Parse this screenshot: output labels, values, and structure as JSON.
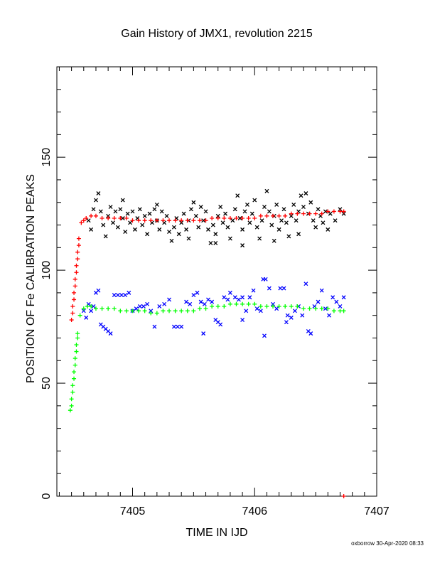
{
  "chart_data": {
    "type": "scatter",
    "title": "Gain History of JMX1, revolution 2215",
    "xlabel": "TIME IN IJD",
    "ylabel": "POSITION OF Fe CALIBRATION PEAKS",
    "xlim": [
      7404.38,
      7407.0
    ],
    "ylim": [
      0,
      190
    ],
    "xticks": [
      7405,
      7406,
      7407
    ],
    "xtick_labels": [
      "7405",
      "7406",
      "7407"
    ],
    "yticks": [
      0,
      50,
      100,
      150
    ],
    "ytick_labels": [
      "0",
      "50",
      "100",
      "150"
    ],
    "footer": "oxborrow 30-Apr-2020 08:33",
    "series": [
      {
        "color": "#000000",
        "marker": "x",
        "points": [
          [
            7404.64,
            122
          ],
          [
            7404.66,
            118
          ],
          [
            7404.68,
            127
          ],
          [
            7404.7,
            131
          ],
          [
            7404.72,
            134
          ],
          [
            7404.74,
            126
          ],
          [
            7404.76,
            120
          ],
          [
            7404.78,
            115
          ],
          [
            7404.8,
            124
          ],
          [
            7404.82,
            128
          ],
          [
            7404.84,
            121
          ],
          [
            7404.86,
            126
          ],
          [
            7404.88,
            119
          ],
          [
            7404.9,
            127
          ],
          [
            7404.92,
            123
          ],
          [
            7404.94,
            117
          ],
          [
            7404.96,
            125
          ],
          [
            7404.98,
            121
          ],
          [
            7405.0,
            126
          ],
          [
            7405.02,
            118
          ],
          [
            7405.04,
            123
          ],
          [
            7405.06,
            127
          ],
          [
            7405.08,
            120
          ],
          [
            7405.1,
            124
          ],
          [
            7405.12,
            116
          ],
          [
            7405.14,
            125
          ],
          [
            7405.16,
            121
          ],
          [
            7405.18,
            127
          ],
          [
            7405.2,
            122
          ],
          [
            7405.22,
            118
          ],
          [
            7405.24,
            126
          ],
          [
            7405.26,
            121
          ],
          [
            7405.28,
            124
          ],
          [
            7405.3,
            117
          ],
          [
            7405.32,
            113
          ],
          [
            7405.34,
            119
          ],
          [
            7405.36,
            123
          ],
          [
            7405.38,
            116
          ],
          [
            7405.4,
            121
          ],
          [
            7405.42,
            125
          ],
          [
            7405.44,
            118
          ],
          [
            7405.46,
            122
          ],
          [
            7405.48,
            127
          ],
          [
            7405.5,
            130
          ],
          [
            7405.52,
            124
          ],
          [
            7405.54,
            119
          ],
          [
            7405.56,
            128
          ],
          [
            7405.58,
            122
          ],
          [
            7405.6,
            126
          ],
          [
            7405.62,
            118
          ],
          [
            7405.64,
            112
          ],
          [
            7405.66,
            120
          ],
          [
            7405.68,
            116
          ],
          [
            7405.7,
            124
          ],
          [
            7405.72,
            128
          ],
          [
            7405.74,
            121
          ],
          [
            7405.76,
            125
          ],
          [
            7405.78,
            119
          ],
          [
            7405.8,
            114
          ],
          [
            7405.82,
            122
          ],
          [
            7405.84,
            127
          ],
          [
            7405.86,
            133
          ],
          [
            7405.88,
            123
          ],
          [
            7405.9,
            118
          ],
          [
            7405.92,
            126
          ],
          [
            7405.94,
            129
          ],
          [
            7405.96,
            121
          ],
          [
            7405.98,
            125
          ],
          [
            7406.0,
            131
          ],
          [
            7406.02,
            119
          ],
          [
            7406.04,
            114
          ],
          [
            7406.06,
            122
          ],
          [
            7406.08,
            128
          ],
          [
            7406.1,
            135
          ],
          [
            7406.12,
            126
          ],
          [
            7406.14,
            120
          ],
          [
            7406.16,
            124
          ],
          [
            7406.18,
            129
          ],
          [
            7406.2,
            118
          ],
          [
            7406.22,
            122
          ],
          [
            7406.24,
            127
          ],
          [
            7406.26,
            121
          ],
          [
            7406.28,
            115
          ],
          [
            7406.3,
            124
          ],
          [
            7406.32,
            129
          ],
          [
            7406.34,
            122
          ],
          [
            7406.36,
            126
          ],
          [
            7406.38,
            133
          ],
          [
            7406.4,
            128
          ],
          [
            7406.42,
            134
          ],
          [
            7406.44,
            125
          ],
          [
            7406.46,
            130
          ],
          [
            7406.48,
            122
          ],
          [
            7406.5,
            119
          ],
          [
            7406.52,
            127
          ],
          [
            7406.54,
            124
          ],
          [
            7406.56,
            121
          ],
          [
            7406.58,
            126
          ],
          [
            7406.6,
            118
          ],
          [
            7406.62,
            125
          ],
          [
            7406.66,
            122
          ],
          [
            7406.7,
            127
          ],
          [
            7406.73,
            125
          ],
          [
            7405.68,
            112
          ],
          [
            7406.36,
            116
          ],
          [
            7405.2,
            129
          ],
          [
            7405.46,
            114
          ],
          [
            7405.9,
            111
          ],
          [
            7406.16,
            113
          ],
          [
            7404.92,
            131
          ]
        ]
      },
      {
        "color": "#ff0000",
        "marker": "+",
        "points": [
          [
            7404.5,
            78
          ],
          [
            7404.51,
            81
          ],
          [
            7404.51,
            84
          ],
          [
            7404.52,
            87
          ],
          [
            7404.52,
            90
          ],
          [
            7404.53,
            93
          ],
          [
            7404.53,
            96
          ],
          [
            7404.54,
            99
          ],
          [
            7404.54,
            102
          ],
          [
            7404.55,
            105
          ],
          [
            7404.55,
            108
          ],
          [
            7404.56,
            111
          ],
          [
            7404.56,
            114
          ],
          [
            7404.58,
            121
          ],
          [
            7404.6,
            122
          ],
          [
            7404.62,
            123
          ],
          [
            7404.66,
            124
          ],
          [
            7404.7,
            124
          ],
          [
            7404.75,
            123
          ],
          [
            7404.8,
            123
          ],
          [
            7404.85,
            123
          ],
          [
            7404.9,
            123
          ],
          [
            7404.95,
            123
          ],
          [
            7405.0,
            122
          ],
          [
            7405.05,
            122
          ],
          [
            7405.1,
            122
          ],
          [
            7405.15,
            122
          ],
          [
            7405.2,
            122
          ],
          [
            7405.25,
            122
          ],
          [
            7405.3,
            122
          ],
          [
            7405.35,
            122
          ],
          [
            7405.4,
            122
          ],
          [
            7405.45,
            122
          ],
          [
            7405.5,
            122
          ],
          [
            7405.55,
            122
          ],
          [
            7405.6,
            122
          ],
          [
            7405.65,
            123
          ],
          [
            7405.7,
            123
          ],
          [
            7405.75,
            123
          ],
          [
            7405.8,
            123
          ],
          [
            7405.85,
            123
          ],
          [
            7405.9,
            123
          ],
          [
            7405.95,
            123
          ],
          [
            7406.0,
            123
          ],
          [
            7406.05,
            124
          ],
          [
            7406.1,
            124
          ],
          [
            7406.15,
            124
          ],
          [
            7406.2,
            124
          ],
          [
            7406.25,
            124
          ],
          [
            7406.3,
            125
          ],
          [
            7406.35,
            125
          ],
          [
            7406.4,
            125
          ],
          [
            7406.45,
            125
          ],
          [
            7406.5,
            125
          ],
          [
            7406.55,
            125
          ],
          [
            7406.6,
            126
          ],
          [
            7406.65,
            126
          ],
          [
            7406.7,
            126
          ],
          [
            7406.73,
            126
          ],
          [
            7406.73,
            0
          ]
        ]
      },
      {
        "color": "#0000ff",
        "marker": "x",
        "points": [
          [
            7404.6,
            82
          ],
          [
            7404.62,
            79
          ],
          [
            7404.64,
            85
          ],
          [
            7404.66,
            82
          ],
          [
            7404.68,
            84
          ],
          [
            7404.7,
            90
          ],
          [
            7404.72,
            91
          ],
          [
            7404.74,
            76
          ],
          [
            7404.76,
            75
          ],
          [
            7404.78,
            74
          ],
          [
            7404.8,
            73
          ],
          [
            7404.82,
            72
          ],
          [
            7404.85,
            89
          ],
          [
            7404.88,
            89
          ],
          [
            7404.91,
            89
          ],
          [
            7404.94,
            89
          ],
          [
            7404.97,
            90
          ],
          [
            7405.0,
            82
          ],
          [
            7405.03,
            83
          ],
          [
            7405.06,
            84
          ],
          [
            7405.09,
            84
          ],
          [
            7405.12,
            85
          ],
          [
            7405.15,
            82
          ],
          [
            7405.18,
            75
          ],
          [
            7405.22,
            84
          ],
          [
            7405.26,
            85
          ],
          [
            7405.3,
            87
          ],
          [
            7405.34,
            75
          ],
          [
            7405.37,
            75
          ],
          [
            7405.4,
            75
          ],
          [
            7405.44,
            86
          ],
          [
            7405.47,
            85
          ],
          [
            7405.5,
            89
          ],
          [
            7405.53,
            90
          ],
          [
            7405.56,
            86
          ],
          [
            7405.59,
            85
          ],
          [
            7405.62,
            87
          ],
          [
            7405.65,
            86
          ],
          [
            7405.68,
            78
          ],
          [
            7405.7,
            77
          ],
          [
            7405.72,
            76
          ],
          [
            7405.75,
            88
          ],
          [
            7405.78,
            87
          ],
          [
            7405.8,
            90
          ],
          [
            7405.84,
            88
          ],
          [
            7405.87,
            87
          ],
          [
            7405.9,
            88
          ],
          [
            7405.93,
            82
          ],
          [
            7405.96,
            88
          ],
          [
            7405.99,
            91
          ],
          [
            7406.02,
            83
          ],
          [
            7406.05,
            82
          ],
          [
            7406.07,
            96
          ],
          [
            7406.09,
            96
          ],
          [
            7406.12,
            92
          ],
          [
            7406.15,
            85
          ],
          [
            7406.18,
            83
          ],
          [
            7406.21,
            92
          ],
          [
            7406.24,
            92
          ],
          [
            7406.27,
            80
          ],
          [
            7406.3,
            79
          ],
          [
            7406.33,
            82
          ],
          [
            7406.36,
            84
          ],
          [
            7406.39,
            80
          ],
          [
            7406.42,
            94
          ],
          [
            7406.44,
            73
          ],
          [
            7406.46,
            72
          ],
          [
            7406.49,
            84
          ],
          [
            7406.52,
            86
          ],
          [
            7406.55,
            91
          ],
          [
            7406.58,
            83
          ],
          [
            7406.61,
            80
          ],
          [
            7406.64,
            88
          ],
          [
            7406.67,
            86
          ],
          [
            7406.7,
            84
          ],
          [
            7406.73,
            88
          ],
          [
            7405.58,
            72
          ],
          [
            7405.9,
            78
          ],
          [
            7406.08,
            71
          ],
          [
            7406.26,
            77
          ]
        ]
      },
      {
        "color": "#00ff00",
        "marker": "+",
        "points": [
          [
            7404.49,
            38
          ],
          [
            7404.5,
            40
          ],
          [
            7404.5,
            43
          ],
          [
            7404.51,
            46
          ],
          [
            7404.51,
            49
          ],
          [
            7404.52,
            52
          ],
          [
            7404.52,
            55
          ],
          [
            7404.53,
            58
          ],
          [
            7404.53,
            61
          ],
          [
            7404.54,
            64
          ],
          [
            7404.54,
            67
          ],
          [
            7404.55,
            70
          ],
          [
            7404.55,
            72
          ],
          [
            7404.57,
            80
          ],
          [
            7404.6,
            83
          ],
          [
            7404.63,
            84
          ],
          [
            7404.66,
            84
          ],
          [
            7404.7,
            83
          ],
          [
            7404.75,
            83
          ],
          [
            7404.8,
            83
          ],
          [
            7404.85,
            83
          ],
          [
            7404.9,
            82
          ],
          [
            7404.95,
            82
          ],
          [
            7405.0,
            82
          ],
          [
            7405.05,
            82
          ],
          [
            7405.1,
            82
          ],
          [
            7405.15,
            81
          ],
          [
            7405.2,
            81
          ],
          [
            7405.25,
            82
          ],
          [
            7405.3,
            82
          ],
          [
            7405.35,
            82
          ],
          [
            7405.4,
            82
          ],
          [
            7405.45,
            82
          ],
          [
            7405.5,
            82
          ],
          [
            7405.55,
            83
          ],
          [
            7405.6,
            83
          ],
          [
            7405.65,
            84
          ],
          [
            7405.7,
            84
          ],
          [
            7405.75,
            84
          ],
          [
            7405.8,
            85
          ],
          [
            7405.85,
            85
          ],
          [
            7405.9,
            85
          ],
          [
            7405.95,
            85
          ],
          [
            7406.0,
            85
          ],
          [
            7406.05,
            84
          ],
          [
            7406.1,
            84
          ],
          [
            7406.15,
            84
          ],
          [
            7406.2,
            84
          ],
          [
            7406.25,
            84
          ],
          [
            7406.3,
            84
          ],
          [
            7406.35,
            84
          ],
          [
            7406.4,
            83
          ],
          [
            7406.45,
            83
          ],
          [
            7406.5,
            83
          ],
          [
            7406.55,
            83
          ],
          [
            7406.6,
            83
          ],
          [
            7406.65,
            82
          ],
          [
            7406.7,
            82
          ],
          [
            7406.73,
            82
          ]
        ]
      }
    ]
  }
}
